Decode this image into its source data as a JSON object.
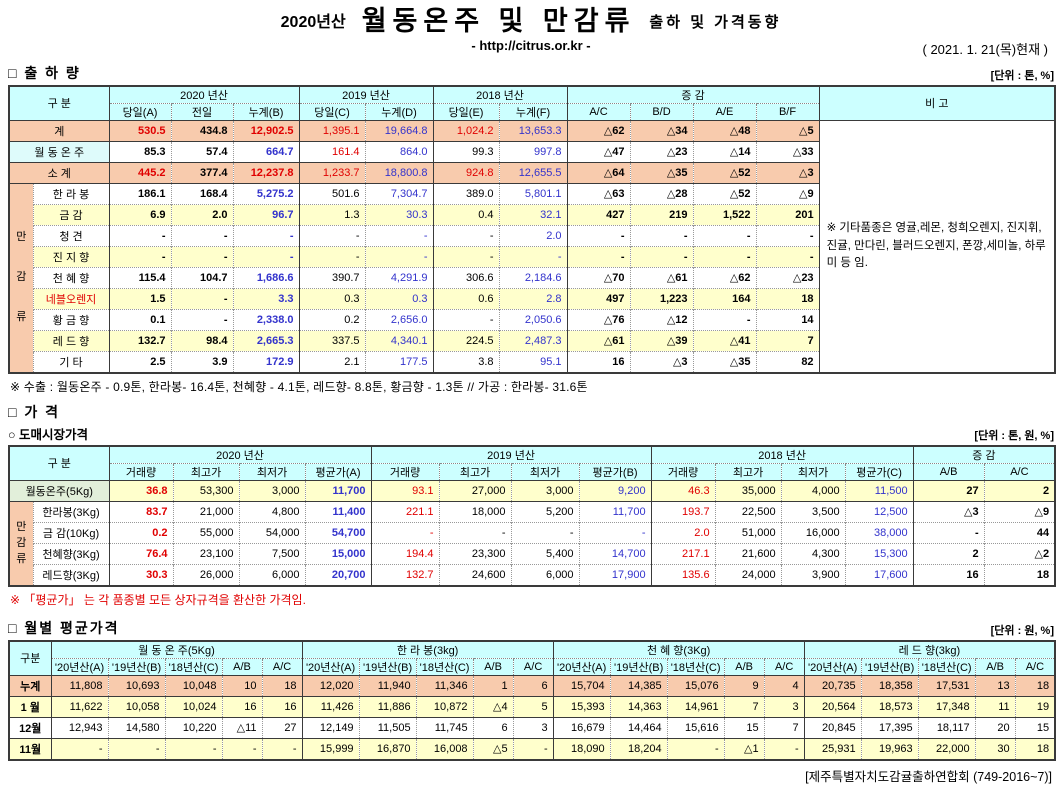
{
  "palette": {
    "header_bg": "#CCFFFF",
    "subtotal_bg": "#F8CBAD",
    "alt_row_bg": "#FFFFCC",
    "wd_label_bg": "#DEFBFB",
    "price_label_bg": "#E2EFDA",
    "value_red": "#E00000",
    "value_blue": "#3333CC"
  },
  "header": {
    "season": "2020년산",
    "title": "월동온주 및 만감류",
    "subtitle": "출하 및 가격동향",
    "url": "- http://citrus.or.kr -",
    "date": "( 2021. 1. 21(목)현재 )"
  },
  "shipment": {
    "section_title": "□ 출 하 량",
    "unit": "[단위 : 톤, %]",
    "corner": "구      분",
    "groups": [
      "2020 년산",
      "2019 년산",
      "2018 년산",
      "증      감"
    ],
    "remark_title": "비 고",
    "subheaders": [
      "당일(A)",
      "전일",
      "누계(B)",
      "당일(C)",
      "누계(D)",
      "당일(E)",
      "누계(F)",
      "A/C",
      "B/D",
      "A/E",
      "B/F"
    ],
    "group_label": "만감류",
    "remark": "※ 기타품종은 영귤,레몬, 청희오렌지, 진지휘, 진귤, 만다린, 블러드오렌지, 폰깡,세미놀, 하루미 등 임.",
    "rows": [
      {
        "label": "계",
        "type": "total",
        "cells": [
          "530.5",
          "434.8",
          "12,902.5",
          "1,395.1",
          "19,664.8",
          "1,024.2",
          "13,653.3",
          "△62",
          "△34",
          "△48",
          "△5"
        ]
      },
      {
        "label": "월 동 온 주",
        "type": "wd",
        "cells": [
          "85.3",
          "57.4",
          "664.7",
          "161.4",
          "864.0",
          "99.3",
          "997.8",
          "△47",
          "△23",
          "△14",
          "△33"
        ]
      },
      {
        "label": "소      계",
        "type": "total",
        "cells": [
          "445.2",
          "377.4",
          "12,237.8",
          "1,233.7",
          "18,800.8",
          "924.8",
          "12,655.5",
          "△64",
          "△35",
          "△52",
          "△3"
        ]
      },
      {
        "label": "한 라 봉",
        "type": "sp",
        "cells": [
          "186.1",
          "168.4",
          "5,275.2",
          "501.6",
          "7,304.7",
          "389.0",
          "5,801.1",
          "△63",
          "△28",
          "△52",
          "△9"
        ]
      },
      {
        "label": "금    감",
        "type": "sp",
        "cells": [
          "6.9",
          "2.0",
          "96.7",
          "1.3",
          "30.3",
          "0.4",
          "32.1",
          "427",
          "219",
          "1,522",
          "201"
        ]
      },
      {
        "label": "청    견",
        "type": "sp",
        "cells": [
          "-",
          "-",
          "-",
          "-",
          "-",
          "-",
          "2.0",
          "-",
          "-",
          "-",
          "-"
        ]
      },
      {
        "label": "진 지 향",
        "type": "sp",
        "cells": [
          "-",
          "-",
          "-",
          "-",
          "-",
          "-",
          "-",
          "-",
          "-",
          "-",
          "-"
        ]
      },
      {
        "label": "천 혜 향",
        "type": "sp",
        "cells": [
          "115.4",
          "104.7",
          "1,686.6",
          "390.7",
          "4,291.9",
          "306.6",
          "2,184.6",
          "△70",
          "△61",
          "△62",
          "△23"
        ]
      },
      {
        "label": "네블오렌지",
        "type": "sp",
        "label_color": "red",
        "cells": [
          "1.5",
          "-",
          "3.3",
          "0.3",
          "0.3",
          "0.6",
          "2.8",
          "497",
          "1,223",
          "164",
          "18"
        ]
      },
      {
        "label": "황 금 향",
        "type": "sp",
        "cells": [
          "0.1",
          "-",
          "2,338.0",
          "0.2",
          "2,656.0",
          "-",
          "2,050.6",
          "△76",
          "△12",
          "-",
          "14"
        ]
      },
      {
        "label": "레 드 향",
        "type": "sp",
        "cells": [
          "132.7",
          "98.4",
          "2,665.3",
          "337.5",
          "4,340.1",
          "224.5",
          "2,487.3",
          "△61",
          "△39",
          "△41",
          "7"
        ]
      },
      {
        "label": "기    타",
        "type": "sp",
        "cells": [
          "2.5",
          "3.9",
          "172.9",
          "2.1",
          "177.5",
          "3.8",
          "95.1",
          "16",
          "△3",
          "△35",
          "82"
        ]
      }
    ],
    "footnote": "※ 수출 : 월동온주 - 0.9톤, 한라봉- 16.4톤, 천혜향 - 4.1톤, 레드향- 8.8톤, 황금향 - 1.3톤  //  가공 : 한라봉- 31.6톤"
  },
  "price": {
    "section_title": "□ 가      격",
    "subsection_title": "○ 도매시장가격",
    "unit": "[단위 : 톤, 원, %]",
    "corner": "구      분",
    "groups": [
      "2020 년산",
      "2019 년산",
      "2018 년산",
      "증  감"
    ],
    "subheaders": [
      "거래량",
      "최고가",
      "최저가",
      "평균가(A)",
      "거래량",
      "최고가",
      "최저가",
      "평균가(B)",
      "거래량",
      "최고가",
      "최저가",
      "평균가(C)",
      "A/B",
      "A/C"
    ],
    "group_label": "만감류",
    "rows": [
      {
        "label": "월동온주(5Kg)",
        "type": "wd",
        "cells": [
          "36.8",
          "53,300",
          "3,000",
          "11,700",
          "93.1",
          "27,000",
          "3,000",
          "9,200",
          "46.3",
          "35,000",
          "4,000",
          "11,500",
          "27",
          "2"
        ]
      },
      {
        "label": "한라봉(3Kg)",
        "type": "sp",
        "cells": [
          "83.7",
          "21,000",
          "4,800",
          "11,400",
          "221.1",
          "18,000",
          "5,200",
          "11,700",
          "193.7",
          "22,500",
          "3,500",
          "12,500",
          "△3",
          "△9"
        ]
      },
      {
        "label": "금  감(10Kg)",
        "type": "sp",
        "cells": [
          "0.2",
          "55,000",
          "54,000",
          "54,700",
          "-",
          "-",
          "-",
          "-",
          "2.0",
          "51,000",
          "16,000",
          "38,000",
          "-",
          "44"
        ]
      },
      {
        "label": "천혜향(3Kg)",
        "type": "sp",
        "cells": [
          "76.4",
          "23,100",
          "7,500",
          "15,000",
          "194.4",
          "23,300",
          "5,400",
          "14,700",
          "217.1",
          "21,600",
          "4,300",
          "15,300",
          "2",
          "△2"
        ]
      },
      {
        "label": "레드향(3Kg)",
        "type": "sp",
        "cells": [
          "30.3",
          "26,000",
          "6,000",
          "20,700",
          "132.7",
          "24,600",
          "6,000",
          "17,900",
          "135.6",
          "24,000",
          "3,900",
          "17,600",
          "16",
          "18"
        ]
      }
    ],
    "note": "※  「평균가」 는 각 품종별 모든 상자규격을 환산한 가격임."
  },
  "monthly": {
    "section_title": "□ 월별 평균가격",
    "unit": "[단위 : 원, %]",
    "corner": "구분",
    "groups": [
      "월 동 온 주(5Kg)",
      "한 라 봉(3kg)",
      "천 혜 향(3Kg)",
      "레 드 향(3kg)"
    ],
    "subheaders": [
      "'20년산(A)",
      "'19년산(B)",
      "'18년산(C)",
      "A/B",
      "A/C"
    ],
    "rows": [
      {
        "label": "누계",
        "cells": [
          "11,808",
          "10,693",
          "10,048",
          "10",
          "18",
          "12,020",
          "11,940",
          "11,346",
          "1",
          "6",
          "15,704",
          "14,385",
          "15,076",
          "9",
          "4",
          "20,735",
          "18,358",
          "17,531",
          "13",
          "18"
        ]
      },
      {
        "label": "1 월",
        "cells": [
          "11,622",
          "10,058",
          "10,024",
          "16",
          "16",
          "11,426",
          "11,886",
          "10,872",
          "△4",
          "5",
          "15,393",
          "14,363",
          "14,961",
          "7",
          "3",
          "20,564",
          "18,573",
          "17,348",
          "11",
          "19"
        ]
      },
      {
        "label": "12월",
        "cells": [
          "12,943",
          "14,580",
          "10,220",
          "△11",
          "27",
          "12,149",
          "11,505",
          "11,745",
          "6",
          "3",
          "16,679",
          "14,464",
          "15,616",
          "15",
          "7",
          "20,845",
          "17,395",
          "18,117",
          "20",
          "15"
        ]
      },
      {
        "label": "11월",
        "cells": [
          "-",
          "-",
          "-",
          "-",
          "-",
          "15,999",
          "16,870",
          "16,008",
          "△5",
          "-",
          "18,090",
          "18,204",
          "-",
          "△1",
          "-",
          "25,931",
          "19,963",
          "22,000",
          "30",
          "18"
        ]
      }
    ]
  },
  "footer": {
    "text": "[제주특별자치도감귤출하연합회 (749-2016~7)]"
  }
}
